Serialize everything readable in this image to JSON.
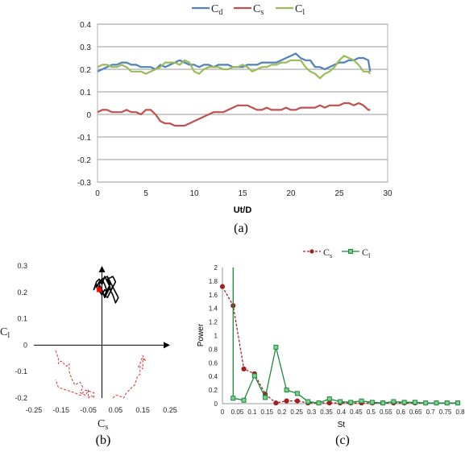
{
  "captions": {
    "a": "(a)",
    "b": "(b)",
    "c": "(c)"
  },
  "chart_data": [
    {
      "id": "a",
      "type": "line",
      "xlabel": "Ut/D",
      "ylabel": "",
      "xlim": [
        0,
        30
      ],
      "ylim": [
        -0.3,
        0.4
      ],
      "xticks": [
        "0",
        "5",
        "10",
        "15",
        "20",
        "25",
        "30"
      ],
      "yticks": [
        "-0.3",
        "-0.2",
        "-0.1",
        "0",
        "0.1",
        "0.2",
        "0.3",
        "0.4"
      ],
      "grid": "horizontal",
      "legend": "top",
      "series": [
        {
          "name": "Cd",
          "base": "C",
          "sub": "d",
          "color": "#4f81bd",
          "x": [
            0,
            0.5,
            1,
            1.5,
            2,
            2.5,
            3,
            3.5,
            4,
            4.5,
            5,
            5.5,
            6,
            6.5,
            7,
            7.5,
            8,
            8.5,
            9,
            9.5,
            10,
            10.5,
            11,
            11.5,
            12,
            12.5,
            13,
            13.5,
            14,
            14.5,
            15,
            15.5,
            16,
            16.5,
            17,
            17.5,
            18,
            18.5,
            19,
            19.5,
            20,
            20.5,
            21,
            21.5,
            22,
            22.5,
            23,
            23.5,
            24,
            24.5,
            25,
            25.5,
            26,
            26.5,
            27,
            27.5,
            28,
            28.2
          ],
          "y": [
            0.19,
            0.2,
            0.21,
            0.22,
            0.22,
            0.23,
            0.23,
            0.22,
            0.22,
            0.21,
            0.21,
            0.21,
            0.2,
            0.22,
            0.21,
            0.22,
            0.23,
            0.24,
            0.23,
            0.22,
            0.22,
            0.21,
            0.22,
            0.22,
            0.21,
            0.22,
            0.22,
            0.22,
            0.21,
            0.21,
            0.21,
            0.22,
            0.22,
            0.22,
            0.23,
            0.23,
            0.23,
            0.23,
            0.24,
            0.25,
            0.26,
            0.27,
            0.25,
            0.24,
            0.24,
            0.21,
            0.21,
            0.2,
            0.21,
            0.22,
            0.23,
            0.23,
            0.24,
            0.24,
            0.25,
            0.25,
            0.24,
            0.19
          ]
        },
        {
          "name": "Cs",
          "base": "C",
          "sub": "s",
          "color": "#c0504d",
          "x": [
            0,
            0.5,
            1,
            1.5,
            2,
            2.5,
            3,
            3.5,
            4,
            4.5,
            5,
            5.5,
            6,
            6.5,
            7,
            7.5,
            8,
            8.5,
            9,
            9.5,
            10,
            10.5,
            11,
            11.5,
            12,
            12.5,
            13,
            13.5,
            14,
            14.5,
            15,
            15.5,
            16,
            16.5,
            17,
            17.5,
            18,
            18.5,
            19,
            19.5,
            20,
            20.5,
            21,
            21.5,
            22,
            22.5,
            23,
            23.5,
            24,
            24.5,
            25,
            25.5,
            26,
            26.5,
            27,
            27.5,
            28,
            28.2
          ],
          "y": [
            0.01,
            0.02,
            0.02,
            0.01,
            0.01,
            0.01,
            0.02,
            0.01,
            0.01,
            0.0,
            0.02,
            0.02,
            0.0,
            -0.03,
            -0.04,
            -0.04,
            -0.05,
            -0.05,
            -0.05,
            -0.04,
            -0.03,
            -0.02,
            -0.01,
            0.0,
            0.01,
            0.01,
            0.01,
            0.02,
            0.03,
            0.04,
            0.04,
            0.04,
            0.03,
            0.02,
            0.02,
            0.03,
            0.02,
            0.02,
            0.02,
            0.03,
            0.02,
            0.02,
            0.03,
            0.03,
            0.03,
            0.03,
            0.04,
            0.03,
            0.04,
            0.04,
            0.04,
            0.05,
            0.05,
            0.04,
            0.05,
            0.04,
            0.02,
            0.02
          ]
        },
        {
          "name": "Cl",
          "base": "C",
          "sub": "l",
          "color": "#9bbb59",
          "x": [
            0,
            0.5,
            1,
            1.5,
            2,
            2.5,
            3,
            3.5,
            4,
            4.5,
            5,
            5.5,
            6,
            6.5,
            7,
            7.5,
            8,
            8.5,
            9,
            9.5,
            10,
            10.5,
            11,
            11.5,
            12,
            12.5,
            13,
            13.5,
            14,
            14.5,
            15,
            15.5,
            16,
            16.5,
            17,
            17.5,
            18,
            18.5,
            19,
            19.5,
            20,
            20.5,
            21,
            21.5,
            22,
            22.5,
            23,
            23.5,
            24,
            24.5,
            25,
            25.5,
            26,
            26.5,
            27,
            27.5,
            28,
            28.2
          ],
          "y": [
            0.21,
            0.22,
            0.22,
            0.21,
            0.21,
            0.22,
            0.21,
            0.19,
            0.19,
            0.19,
            0.18,
            0.19,
            0.2,
            0.21,
            0.23,
            0.23,
            0.23,
            0.22,
            0.24,
            0.23,
            0.19,
            0.18,
            0.2,
            0.21,
            0.21,
            0.21,
            0.2,
            0.2,
            0.21,
            0.21,
            0.22,
            0.21,
            0.19,
            0.2,
            0.21,
            0.21,
            0.22,
            0.22,
            0.23,
            0.23,
            0.24,
            0.24,
            0.24,
            0.21,
            0.19,
            0.18,
            0.16,
            0.18,
            0.19,
            0.21,
            0.24,
            0.26,
            0.25,
            0.24,
            0.22,
            0.19,
            0.19,
            0.18
          ]
        }
      ]
    },
    {
      "id": "b",
      "type": "scatter",
      "xlabel": "Cs",
      "ylabel": "Cl",
      "xlim": [
        -0.25,
        0.25
      ],
      "ylim": [
        -0.2,
        0.3
      ],
      "xticks": [
        "-0.25",
        "-0.15",
        "-0.05",
        "0.05",
        "0.15",
        "0.25"
      ],
      "yticks": [
        "-0.2",
        "-0.1",
        "0",
        "0.1",
        "0.2",
        "0.3"
      ],
      "grid": false,
      "series": [
        {
          "name": "",
          "style": "solid",
          "color": "#000000",
          "x": [
            0.0,
            -0.01,
            -0.02,
            -0.03,
            -0.02,
            -0.01,
            0.0,
            0.01,
            0.02,
            0.03,
            0.02,
            0.01,
            0.0,
            -0.01,
            -0.02,
            0.0,
            0.01,
            0.02,
            0.01,
            0.0,
            -0.01,
            0.0,
            0.02,
            0.03,
            0.04,
            0.03,
            0.02,
            0.01,
            0.02,
            0.03,
            0.02,
            0.04,
            0.05,
            0.04,
            0.05,
            0.06,
            0.05,
            0.04,
            0.03,
            0.04
          ],
          "y": [
            0.2,
            0.22,
            0.23,
            0.21,
            0.24,
            0.25,
            0.23,
            0.26,
            0.24,
            0.22,
            0.2,
            0.23,
            0.25,
            0.24,
            0.22,
            0.19,
            0.21,
            0.2,
            0.18,
            0.21,
            0.23,
            0.25,
            0.26,
            0.24,
            0.22,
            0.2,
            0.18,
            0.19,
            0.21,
            0.23,
            0.25,
            0.26,
            0.24,
            0.22,
            0.2,
            0.18,
            0.16,
            0.19,
            0.21,
            0.22
          ]
        },
        {
          "name": "",
          "style": "dashed",
          "color": "#e03030",
          "x": [
            -0.17,
            -0.16,
            -0.16,
            -0.15,
            -0.13,
            -0.12,
            -0.12,
            -0.11,
            -0.1,
            -0.08,
            -0.07,
            -0.08,
            -0.06,
            -0.05,
            -0.05,
            -0.04,
            -0.03,
            -0.03,
            -0.06,
            -0.08,
            -0.1,
            -0.13,
            -0.16,
            -0.17,
            null,
            0.04,
            0.05,
            0.06,
            0.08,
            0.09,
            0.1,
            0.11,
            0.12,
            0.13,
            0.14,
            0.14,
            0.15,
            0.15,
            0.16,
            0.15,
            0.14,
            0.13
          ],
          "y": [
            -0.02,
            -0.05,
            -0.07,
            -0.06,
            -0.08,
            -0.07,
            -0.1,
            -0.13,
            -0.15,
            -0.14,
            -0.16,
            -0.18,
            -0.19,
            -0.17,
            -0.2,
            -0.19,
            -0.2,
            -0.18,
            -0.17,
            -0.19,
            -0.18,
            -0.17,
            -0.16,
            -0.13,
            null,
            -0.2,
            -0.19,
            -0.19,
            -0.2,
            -0.18,
            -0.17,
            -0.16,
            -0.15,
            -0.12,
            -0.11,
            -0.08,
            -0.09,
            -0.05,
            -0.06,
            -0.04,
            -0.07,
            -0.09
          ]
        }
      ],
      "marker": {
        "x": -0.01,
        "y": 0.21,
        "color": "#ff0000"
      }
    },
    {
      "id": "c",
      "type": "line",
      "xlabel": "St",
      "ylabel": "Power",
      "xlim": [
        0,
        0.8
      ],
      "ylim": [
        0,
        2
      ],
      "xticks": [
        "0",
        "0.05",
        "0.1",
        "0.15",
        "0.2",
        "0.25",
        "0.3",
        "0.35",
        "0.4",
        "0.45",
        "0.5",
        "0.55",
        "0.6",
        "0.65",
        "0.7",
        "0.75",
        "0.8"
      ],
      "yticks": [
        "0",
        "0.2",
        "0.4",
        "0.6",
        "0.8",
        "1",
        "1.2",
        "1.4",
        "1.6",
        "1.8",
        "2"
      ],
      "grid": false,
      "legend": "top",
      "series": [
        {
          "name": "Cs",
          "base": "C",
          "sub": "s",
          "color": "#a32020",
          "style": "dashed",
          "marker": "circle",
          "x": [
            0,
            0.036,
            0.072,
            0.108,
            0.144,
            0.18,
            0.216,
            0.252,
            0.288,
            0.324,
            0.36,
            0.396,
            0.432,
            0.468,
            0.504,
            0.54,
            0.576,
            0.612,
            0.648,
            0.684,
            0.72,
            0.756,
            0.792
          ],
          "y": [
            1.72,
            1.44,
            0.51,
            0.44,
            0.14,
            0.01,
            0.04,
            0.04,
            0.01,
            0.01,
            0.01,
            0.01,
            0.01,
            0.01,
            0.01,
            0.01,
            0.01,
            0.01,
            0.01,
            0.01,
            0.01,
            0.01,
            0.01
          ]
        },
        {
          "name": "Cl",
          "base": "C",
          "sub": "l",
          "color": "#1a8a3a",
          "style": "solid",
          "marker": "square",
          "x": [
            0.036,
            0.036,
            0.072,
            0.108,
            0.144,
            0.18,
            0.216,
            0.252,
            0.288,
            0.324,
            0.36,
            0.396,
            0.432,
            0.468,
            0.504,
            0.54,
            0.576,
            0.612,
            0.648,
            0.684,
            0.72,
            0.756,
            0.792
          ],
          "y": [
            2,
            0.08,
            0.05,
            0.41,
            0.09,
            0.83,
            0.2,
            0.15,
            0.03,
            0.01,
            0.07,
            0.03,
            0.02,
            0.04,
            0.02,
            0.01,
            0.03,
            0.02,
            0.02,
            0.01,
            0.01,
            0.01,
            0.01
          ]
        }
      ]
    }
  ]
}
